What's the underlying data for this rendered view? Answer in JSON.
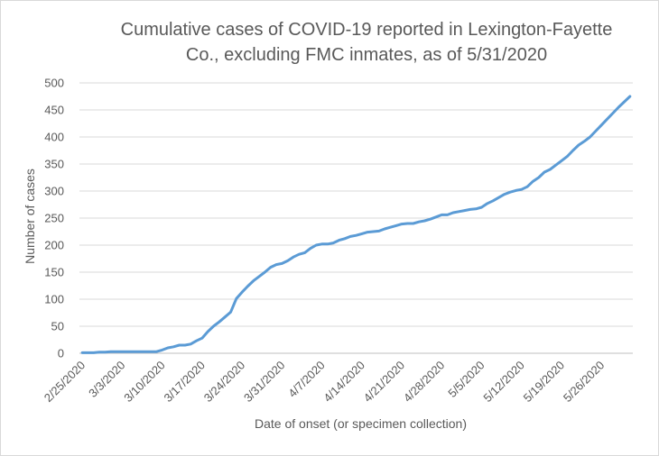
{
  "chart_data": {
    "type": "line",
    "title_line1": "Cumulative cases of COVID-19 reported in Lexington-Fayette",
    "title_line2": "Co., excluding FMC inmates, as of 5/31/2020",
    "xlabel": "Date of onset (or specimen collection)",
    "ylabel": "Number of cases",
    "ylim": [
      0,
      500
    ],
    "y_ticks": [
      0,
      50,
      100,
      150,
      200,
      250,
      300,
      350,
      400,
      450,
      500
    ],
    "x_start_date": "2/25/2020",
    "x_tick_labels": [
      "2/25/2020",
      "3/3/2020",
      "3/10/2020",
      "3/17/2020",
      "3/24/2020",
      "3/31/2020",
      "4/7/2020",
      "4/14/2020",
      "4/21/2020",
      "4/28/2020",
      "5/5/2020",
      "5/12/2020",
      "5/19/2020",
      "5/26/2020"
    ],
    "grid": "horizontal",
    "line_color": "#5b9bd5",
    "series": [
      {
        "values": [
          1,
          1,
          1,
          2,
          2,
          3,
          3,
          3,
          3,
          3,
          3,
          3,
          3,
          3,
          6,
          10,
          12,
          15,
          15,
          17,
          23,
          28,
          40,
          50,
          58,
          67,
          76,
          101,
          113,
          124,
          134,
          142,
          150,
          159,
          164,
          166,
          171,
          178,
          183,
          186,
          194,
          200,
          202,
          202,
          204,
          209,
          212,
          216,
          218,
          221,
          224,
          225,
          226,
          230,
          233,
          236,
          239,
          240,
          240,
          243,
          245,
          248,
          252,
          256,
          256,
          260,
          262,
          264,
          266,
          267,
          270,
          277,
          282,
          288,
          294,
          298,
          301,
          303,
          308,
          318,
          325,
          335,
          340,
          348,
          356,
          364,
          375,
          385,
          392,
          400,
          411,
          422,
          433,
          444,
          455,
          465,
          475
        ]
      }
    ]
  }
}
